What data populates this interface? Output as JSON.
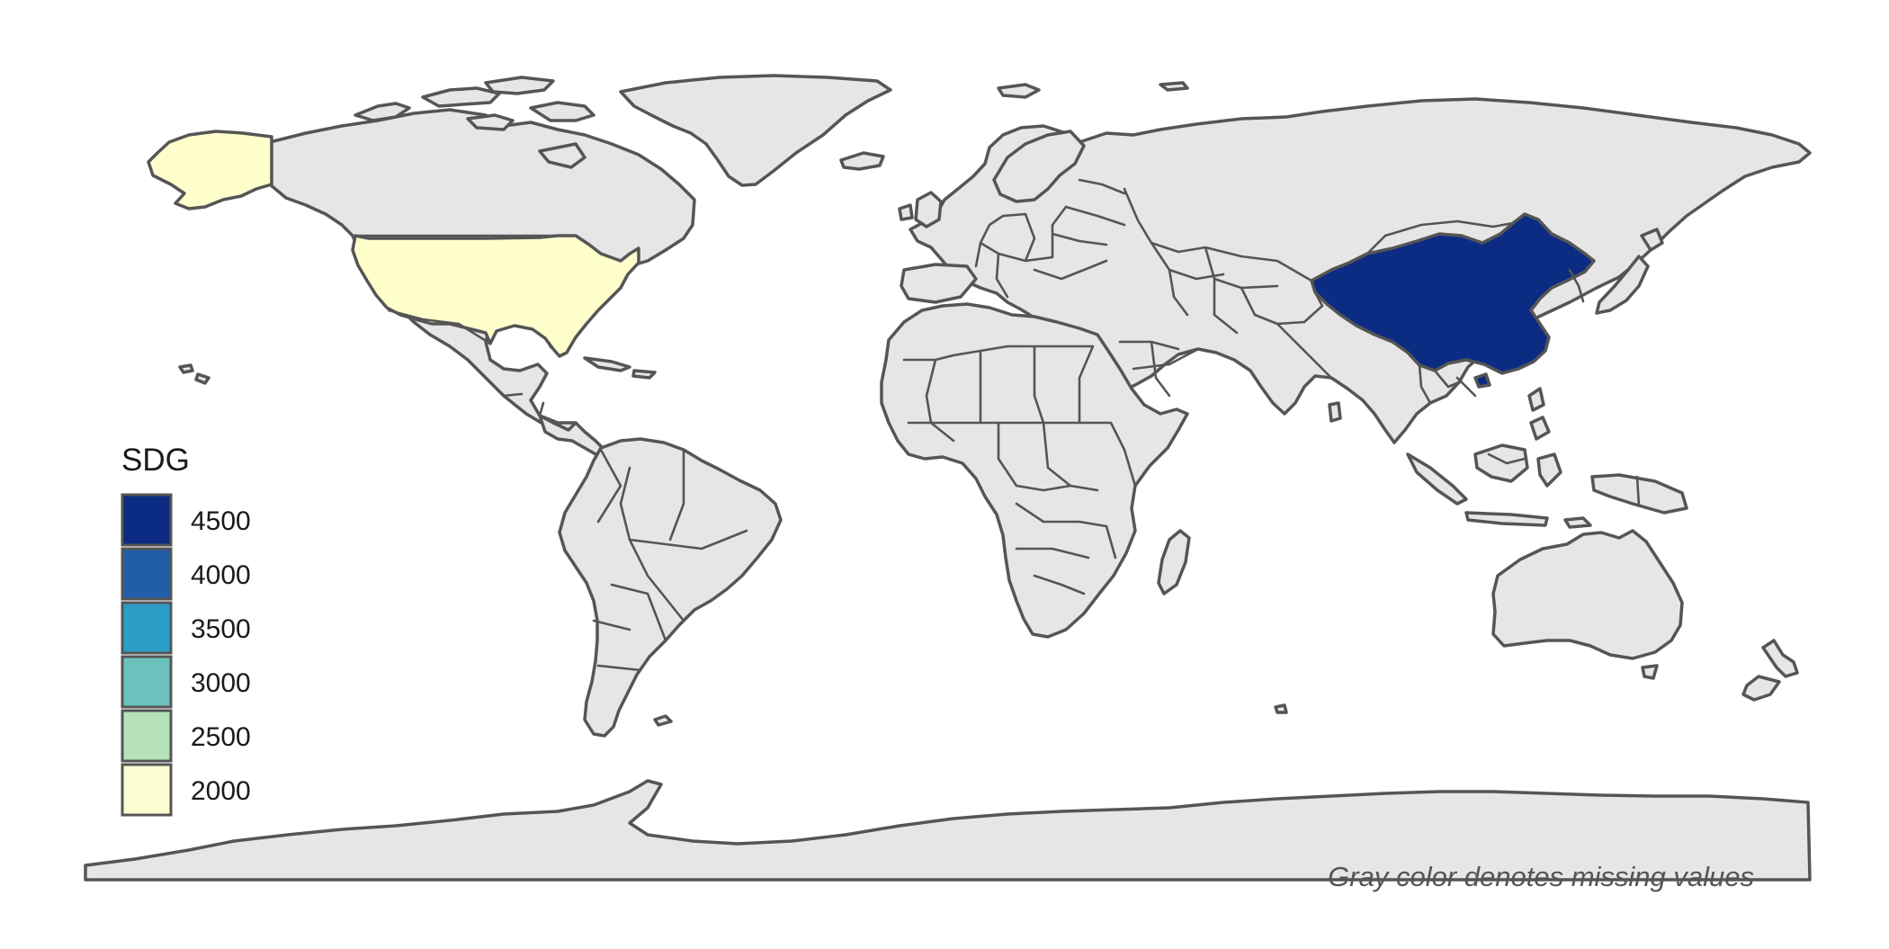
{
  "map": {
    "projection": "equirectangular",
    "missing_color": "#e6e6e6",
    "border_color": "#555555",
    "highlighted_regions": [
      {
        "name": "China",
        "color": "#0c2c84",
        "legend_bin": "4500"
      },
      {
        "name": "United States",
        "color": "#ffffcc",
        "legend_bin": "2000"
      }
    ]
  },
  "legend": {
    "title": "SDG",
    "bins": [
      {
        "label": "4500",
        "color": "#0c2c84"
      },
      {
        "label": "4000",
        "color": "#225ea8"
      },
      {
        "label": "3500",
        "color": "#2c9fc8"
      },
      {
        "label": "3000",
        "color": "#6cc3bd"
      },
      {
        "label": "2500",
        "color": "#b5e2b9"
      },
      {
        "label": "2000",
        "color": "#fbfcd0"
      }
    ]
  },
  "caption": "Gray color denotes missing values"
}
